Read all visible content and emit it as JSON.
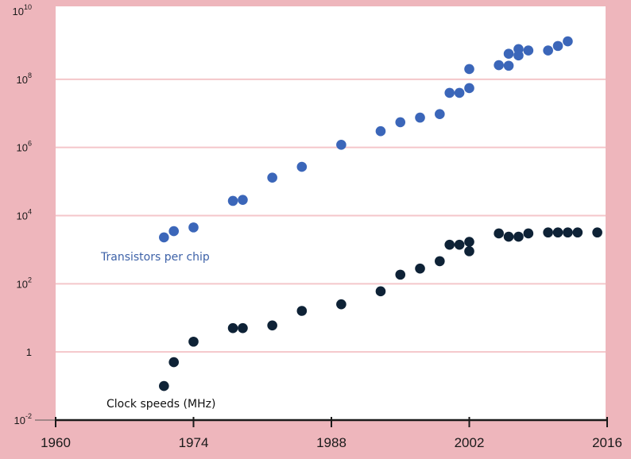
{
  "chart_data": {
    "type": "scatter",
    "title": "",
    "xlabel": "",
    "ylabel": "",
    "x_scale": "linear",
    "y_scale": "log",
    "xlim": [
      1960,
      2016
    ],
    "ylim": [
      0.01,
      10000000000
    ],
    "x_ticks": [
      "1960",
      "1974",
      "1988",
      "2002",
      "2016"
    ],
    "x_tick_values": [
      1960,
      1974,
      1988,
      2002,
      2016
    ],
    "y_ticks": [
      {
        "base": "10",
        "exp": "10",
        "value": 10000000000
      },
      {
        "base": "10",
        "exp": "8",
        "value": 100000000
      },
      {
        "base": "10",
        "exp": "6",
        "value": 1000000
      },
      {
        "base": "10",
        "exp": "4",
        "value": 10000
      },
      {
        "base": "10",
        "exp": "2",
        "value": 100
      },
      {
        "base": "1",
        "exp": "",
        "value": 1
      },
      {
        "base": "10",
        "exp": "-2",
        "value": 0.01
      }
    ],
    "grid": "horizontal",
    "colors": {
      "background": "#eeb6bc",
      "plot": "#ffffff",
      "grid": "#f4c6ca",
      "axis": "#1a1a1a"
    },
    "series": [
      {
        "name": "Transistors per chip",
        "color": "#3b66b9",
        "label_color": "#3e62a8",
        "points": [
          [
            1971,
            2300
          ],
          [
            1972,
            3500
          ],
          [
            1974,
            4500
          ],
          [
            1978,
            27000
          ],
          [
            1979,
            29000
          ],
          [
            1982,
            130000
          ],
          [
            1985,
            270000
          ],
          [
            1989,
            1200000
          ],
          [
            1993,
            3000000
          ],
          [
            1995,
            5500000
          ],
          [
            1997,
            7500000
          ],
          [
            1999,
            9500000
          ],
          [
            2000,
            40000000
          ],
          [
            2001,
            40000000
          ],
          [
            2002,
            55000000
          ],
          [
            2002,
            200000000
          ],
          [
            2005,
            260000000
          ],
          [
            2006,
            250000000
          ],
          [
            2006,
            560000000
          ],
          [
            2007,
            770000000
          ],
          [
            2007,
            500000000
          ],
          [
            2008,
            700000000
          ],
          [
            2010,
            700000000
          ],
          [
            2011,
            950000000
          ],
          [
            2012,
            1300000000
          ]
        ]
      },
      {
        "name": "Clock speeds (MHz)",
        "color": "#0e2236",
        "label_color": "#111111",
        "points": [
          [
            1971,
            0.1
          ],
          [
            1972,
            0.5
          ],
          [
            1974,
            2
          ],
          [
            1978,
            5
          ],
          [
            1979,
            5
          ],
          [
            1982,
            6
          ],
          [
            1985,
            16
          ],
          [
            1989,
            25
          ],
          [
            1993,
            60
          ],
          [
            1995,
            185
          ],
          [
            1997,
            280
          ],
          [
            1999,
            460
          ],
          [
            2000,
            1400
          ],
          [
            2001,
            1400
          ],
          [
            2002,
            1700
          ],
          [
            2002,
            900
          ],
          [
            2005,
            3000
          ],
          [
            2006,
            2400
          ],
          [
            2007,
            2400
          ],
          [
            2008,
            3000
          ],
          [
            2010,
            3200
          ],
          [
            2011,
            3200
          ],
          [
            2012,
            3200
          ],
          [
            2013,
            3200
          ],
          [
            2015,
            3200
          ]
        ]
      }
    ]
  }
}
